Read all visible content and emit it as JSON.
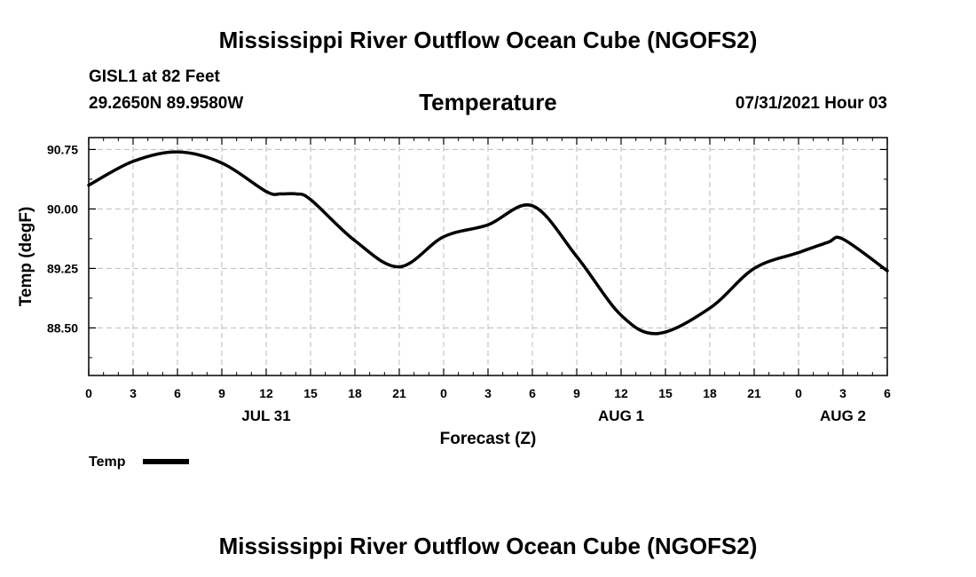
{
  "header": {
    "title": "Mississippi River Outflow Ocean Cube (NGOFS2)",
    "station": "GISL1 at 82 Feet",
    "coords": "29.2650N  89.9580W",
    "variable": "Temperature",
    "datetime": "07/31/2021 Hour 03"
  },
  "footer": {
    "title": "Mississippi River Outflow Ocean Cube (NGOFS2)"
  },
  "colors": {
    "line": "#000000",
    "grid": "#bbbbbb",
    "frame": "#000000"
  },
  "chart_data": {
    "type": "line",
    "title": "Temperature",
    "xlabel": "Forecast (Z)",
    "ylabel": "Temp (degF)",
    "xlim": [
      0,
      54
    ],
    "ylim": [
      87.9,
      90.9
    ],
    "x_ticks": [
      0,
      3,
      6,
      9,
      12,
      15,
      18,
      21,
      24,
      27,
      30,
      33,
      36,
      39,
      42,
      45,
      48,
      51,
      54
    ],
    "x_tick_labels": [
      "0",
      "3",
      "6",
      "9",
      "12",
      "15",
      "18",
      "21",
      "0",
      "3",
      "6",
      "9",
      "12",
      "15",
      "18",
      "21",
      "0",
      "3",
      "6"
    ],
    "x_minor_ticks": [
      1,
      2,
      4,
      5,
      7,
      8,
      10,
      11,
      13,
      14,
      16,
      17,
      19,
      20,
      22,
      23,
      25,
      26,
      28,
      29,
      31,
      32,
      34,
      35,
      37,
      38,
      40,
      41,
      43,
      44,
      46,
      47,
      49,
      50,
      52,
      53
    ],
    "date_labels": [
      {
        "x": 12,
        "label": "JUL 31"
      },
      {
        "x": 36,
        "label": "AUG 1"
      },
      {
        "x": 51,
        "label": "AUG 2"
      }
    ],
    "y_ticks": [
      88.5,
      89.25,
      90.0,
      90.75
    ],
    "y_tick_labels": [
      "88.50",
      "89.25",
      "90.00",
      "90.75"
    ],
    "y_minor_ticks": [
      88.125,
      88.875,
      89.625,
      90.375
    ],
    "grid": true,
    "legend": {
      "position": "bottom-left",
      "entries": [
        "Temp"
      ]
    },
    "series": [
      {
        "name": "Temp",
        "x": [
          0,
          3,
          6,
          9,
          12,
          13,
          14,
          15,
          18,
          21,
          24,
          27,
          30,
          33,
          36,
          38.5,
          42,
          45,
          48,
          50,
          51,
          54
        ],
        "y": [
          90.3,
          90.6,
          90.72,
          90.58,
          90.22,
          90.19,
          90.19,
          90.12,
          89.6,
          89.27,
          89.65,
          89.8,
          90.04,
          89.4,
          88.66,
          88.43,
          88.75,
          89.25,
          89.45,
          89.58,
          89.62,
          89.22
        ]
      }
    ]
  }
}
